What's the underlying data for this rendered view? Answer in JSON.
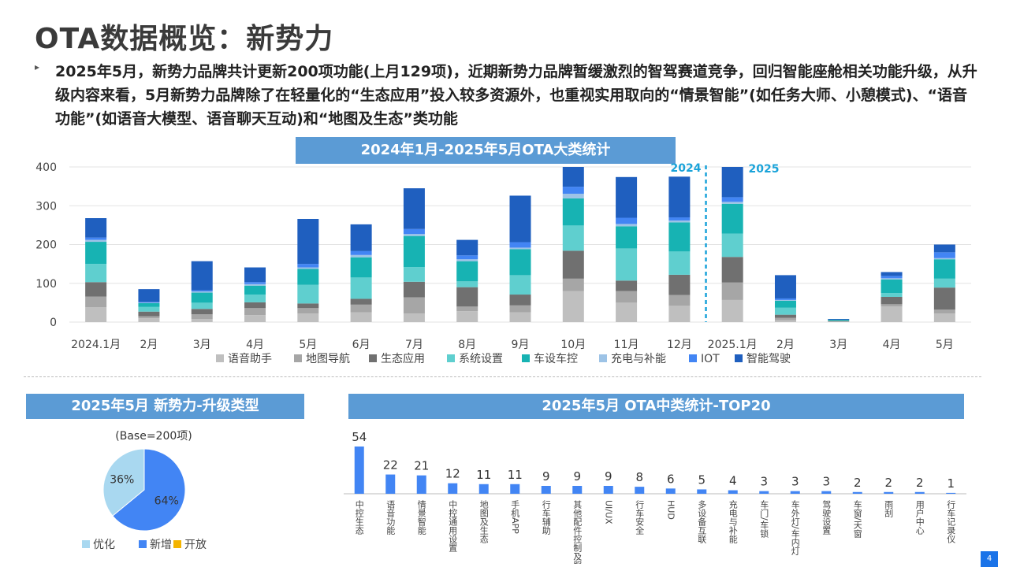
{
  "header": {
    "title": "OTA数据概览：新势力",
    "bullet": "▸",
    "summary": "2025年5月，新势力品牌共计更新200项功能(上月129项)，近期新势力品牌暂缓激烈的智驾赛道竞争，回归智能座舱相关功能升级，从升级内容来看，5月新势力品牌除了在轻量化的“生态应用”投入较多资源外，也重视实用取向的“情景智能”(如任务大师、小憩模式)、“语音功能”(如语音大模型、语音聊天互动)和“地图及生态”类功能"
  },
  "page_number": "4",
  "chart_data": [
    {
      "type": "bar",
      "stacked": true,
      "title": "2024年1月-2025年5月OTA大类统计",
      "categories": [
        "2024.1月",
        "2月",
        "3月",
        "4月",
        "5月",
        "6月",
        "7月",
        "8月",
        "9月",
        "10月",
        "11月",
        "12月",
        "2025.1月",
        "2月",
        "3月",
        "4月",
        "5月"
      ],
      "ylim": [
        0,
        400
      ],
      "yticks": [
        0,
        100,
        200,
        300,
        400
      ],
      "grid": true,
      "legend_position": "bottom",
      "year_markers": [
        "2024",
        "2025"
      ],
      "series": [
        {
          "name": "语音助手",
          "color": "#bfbfbf",
          "values": [
            38,
            10,
            8,
            18,
            22,
            25,
            22,
            28,
            25,
            80,
            50,
            42,
            57,
            5,
            1,
            40,
            22
          ]
        },
        {
          "name": "地图导航",
          "color": "#a6a6a6",
          "values": [
            28,
            5,
            12,
            18,
            14,
            20,
            42,
            12,
            18,
            32,
            30,
            28,
            45,
            6,
            1,
            6,
            10
          ]
        },
        {
          "name": "生态应用",
          "color": "#707070",
          "values": [
            37,
            12,
            14,
            15,
            12,
            15,
            40,
            50,
            28,
            72,
            27,
            52,
            66,
            8,
            1,
            19,
            57
          ]
        },
        {
          "name": "系统设置",
          "color": "#5fcfcf",
          "values": [
            47,
            12,
            16,
            20,
            48,
            55,
            38,
            15,
            50,
            65,
            83,
            60,
            60,
            18,
            1,
            10,
            23
          ]
        },
        {
          "name": "车设车控",
          "color": "#17b3b3",
          "values": [
            57,
            10,
            26,
            23,
            41,
            52,
            80,
            52,
            67,
            70,
            57,
            75,
            77,
            18,
            2,
            35,
            50
          ]
        },
        {
          "name": "充电与补能",
          "color": "#9dc3e6",
          "values": [
            5,
            1,
            3,
            4,
            4,
            6,
            5,
            5,
            4,
            12,
            6,
            5,
            5,
            2,
            0,
            3,
            3
          ]
        },
        {
          "name": "IOT",
          "color": "#4285f4",
          "values": [
            6,
            2,
            3,
            5,
            9,
            10,
            13,
            10,
            14,
            18,
            16,
            8,
            12,
            4,
            0,
            6,
            15
          ]
        },
        {
          "name": "智能驾驶",
          "color": "#1f5fbf",
          "values": [
            50,
            33,
            75,
            38,
            116,
            69,
            105,
            40,
            120,
            80,
            105,
            105,
            80,
            60,
            2,
            10,
            20
          ]
        }
      ]
    },
    {
      "type": "pie",
      "title": "2025年5月 新势力-升级类型",
      "subtitle": "(Base=200项)",
      "legend_position": "bottom",
      "slices": [
        {
          "label": "优化",
          "value": 36,
          "color": "#a9d8f0"
        },
        {
          "label": "新增",
          "value": 64,
          "color": "#4285f4"
        },
        {
          "label": "开放",
          "value": 0,
          "color": "#f4b400"
        }
      ],
      "value_labels": [
        "36%",
        "64%"
      ]
    },
    {
      "type": "bar",
      "title": "2025年5月 OTA中类统计-TOP20",
      "categories": [
        "中控生态",
        "语音功能",
        "情景智能",
        "中控通用设置",
        "地图及生态",
        "手机APP",
        "行车辅助",
        "其他配件控制及服务",
        "UI/UX",
        "行车安全",
        "HUD",
        "多设备互联",
        "充电与补能",
        "车门/车锁",
        "车外灯/车内灯",
        "驾驶设置",
        "车窗/天窗",
        "雨刮",
        "用户中心",
        "行车记录仪"
      ],
      "values": [
        54,
        22,
        21,
        12,
        11,
        11,
        9,
        9,
        9,
        8,
        6,
        5,
        4,
        3,
        3,
        3,
        2,
        2,
        2,
        1
      ],
      "color": "#4285f4"
    }
  ]
}
